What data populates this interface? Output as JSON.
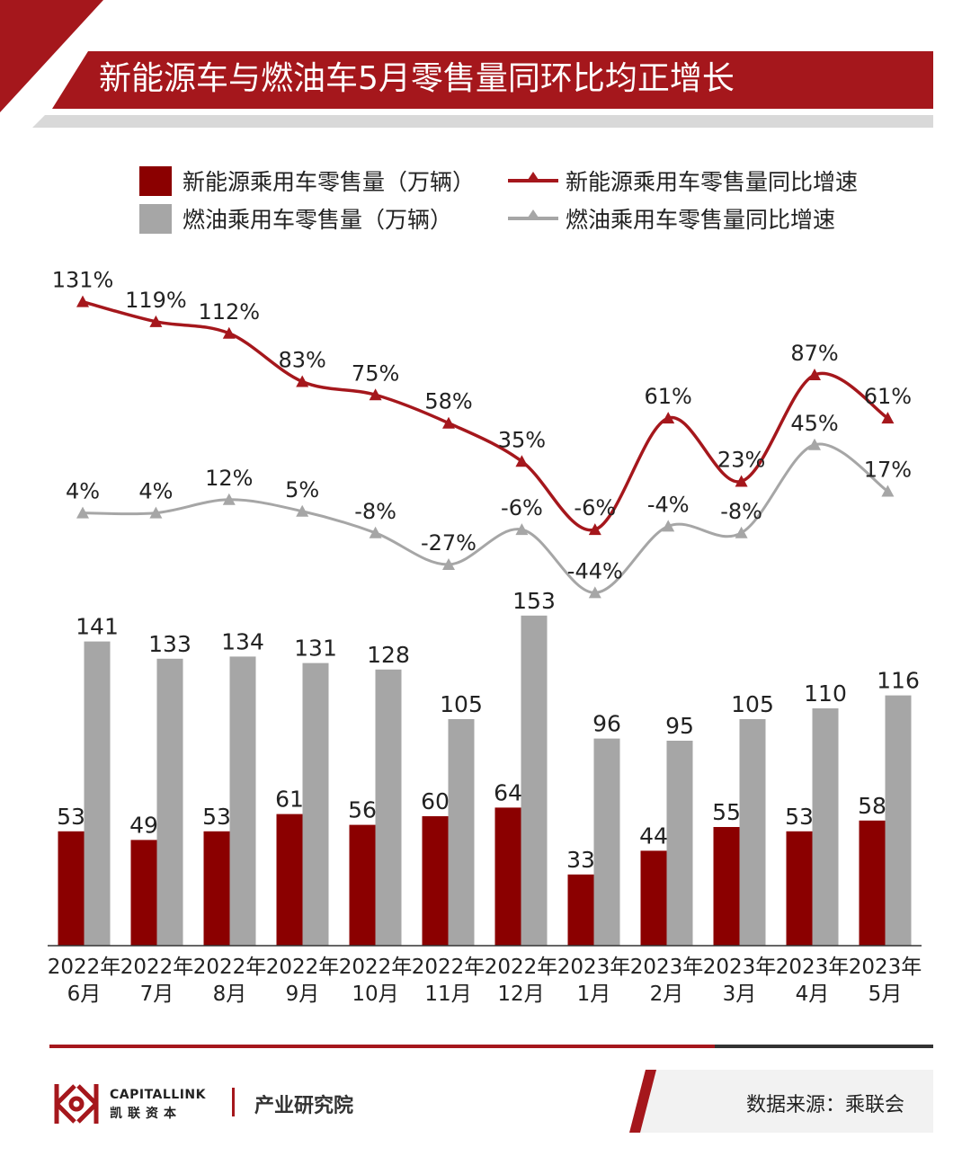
{
  "header": {
    "title": "新能源车与燃油车5月零售量同环比均正增长"
  },
  "legend": {
    "items": [
      {
        "label": "新能源乘用车零售量（万辆）",
        "kind": "bar",
        "color": "#8b0000"
      },
      {
        "label": "新能源乘用车零售量同比增速",
        "kind": "line",
        "color": "#a5171c"
      },
      {
        "label": "燃油乘用车零售量（万辆）",
        "kind": "bar",
        "color": "#a6a6a6"
      },
      {
        "label": "燃油乘用车零售量同比增速",
        "kind": "line",
        "color": "#a6a6a6"
      }
    ]
  },
  "chart_data": {
    "type": "bar",
    "categories": [
      [
        "2022年",
        "6月"
      ],
      [
        "2022年",
        "7月"
      ],
      [
        "2022年",
        "8月"
      ],
      [
        "2022年",
        "9月"
      ],
      [
        "2022年",
        "10月"
      ],
      [
        "2022年",
        "11月"
      ],
      [
        "2022年",
        "12月"
      ],
      [
        "2023年",
        "1月"
      ],
      [
        "2023年",
        "2月"
      ],
      [
        "2023年",
        "3月"
      ],
      [
        "2023年",
        "4月"
      ],
      [
        "2023年",
        "5月"
      ]
    ],
    "bar_series": [
      {
        "name": "新能源乘用车零售量（万辆）",
        "color": "#8b0000",
        "values": [
          53,
          49,
          53,
          61,
          56,
          60,
          64,
          33,
          44,
          55,
          53,
          58
        ],
        "labels": [
          "53",
          "49",
          "53",
          "61",
          "56",
          "60",
          "64",
          "33",
          "44",
          "55",
          "53",
          "58"
        ]
      },
      {
        "name": "燃油乘用车零售量（万辆）",
        "color": "#a6a6a6",
        "values": [
          141,
          133,
          134,
          131,
          128,
          105,
          153,
          96,
          95,
          105,
          110,
          116
        ],
        "labels": [
          "141",
          "133",
          "134",
          "131",
          "128",
          "105",
          "153",
          "96",
          "95",
          "105",
          "110",
          "116"
        ]
      }
    ],
    "line_series": [
      {
        "name": "新能源乘用车零售量同比增速",
        "color": "#a5171c",
        "values": [
          131,
          119,
          112,
          83,
          75,
          58,
          35,
          -6,
          61,
          23,
          87,
          61
        ],
        "labels": [
          "131%",
          "119%",
          "112%",
          "83%",
          "75%",
          "58%",
          "35%",
          "-6%",
          "61%",
          "23%",
          "87%",
          "61%"
        ]
      },
      {
        "name": "燃油乘用车零售量同比增速",
        "color": "#a6a6a6",
        "values": [
          4,
          4,
          12,
          5,
          -8,
          -27,
          -6,
          -44,
          -4,
          -8,
          45,
          17
        ],
        "labels": [
          "4%",
          "4%",
          "12%",
          "5%",
          "-8%",
          "-27%",
          "-6%",
          "-44%",
          "-4%",
          "-8%",
          "45%",
          "17%"
        ]
      }
    ],
    "grid": false,
    "legend_position": "top"
  },
  "footer": {
    "brand_en": "CAPITALLINK",
    "brand_cn": "凯联资本",
    "department": "产业研究院",
    "source": "数据来源：乘联会"
  }
}
